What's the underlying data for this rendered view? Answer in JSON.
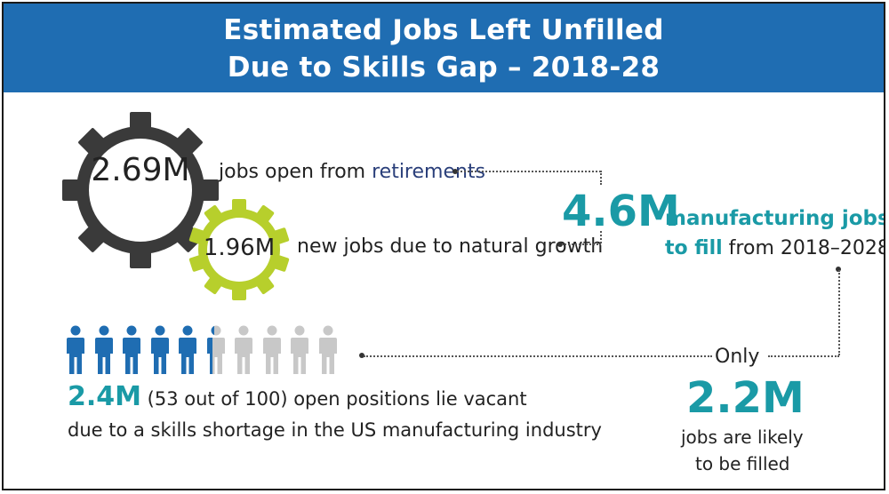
{
  "header": {
    "title_line1": "Estimated Jobs Left Unfilled",
    "title_line2": "Due to Skills Gap – 2018-28"
  },
  "retirements": {
    "value": "2.69M",
    "text_prefix": "jobs open from ",
    "text_highlight": "retirements"
  },
  "growth": {
    "value": "1.96M",
    "text": "new jobs due to natural growth"
  },
  "total": {
    "value": "4.6M",
    "label_line1": "manufacturing jobs",
    "label_line2_bold": "to fill",
    "label_line2_rest": " from 2018–2028"
  },
  "vacant": {
    "value": "2.4M",
    "line1_rest": " (53 out of 100) open positions lie vacant",
    "line2": "due to a skills shortage in the US manufacturing industry",
    "filled_fraction": 0.53
  },
  "filled": {
    "only": "Only",
    "value": "2.2M",
    "line1": "jobs are likely",
    "line2": "to be filled"
  },
  "colors": {
    "header_blue": "#1f6db2",
    "teal": "#1a9aa6",
    "gear_dark": "#3a3a3a",
    "gear_green": "#b7cf2c",
    "person_blue": "#1f6db2",
    "person_gray": "#c8c8c8"
  }
}
